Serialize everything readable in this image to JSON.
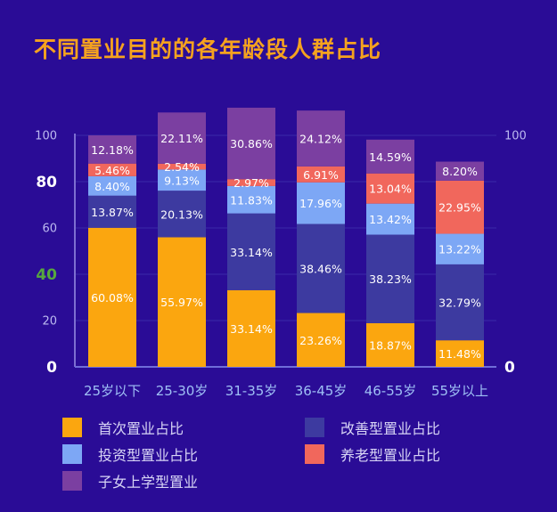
{
  "title": "不同置业目的的各年龄段人群占比",
  "colors": {
    "background": "#2a0c96",
    "title": "#f5a21f",
    "first_home": "#fba60f",
    "improve": "#3d3aa0",
    "invest": "#7da7f5",
    "retire": "#f1675c",
    "education": "#7b3fa1"
  },
  "chart_data": {
    "type": "bar",
    "stacked": true,
    "categories": [
      "25岁以下",
      "25-30岁",
      "31-35岁",
      "36-45岁",
      "46-55岁",
      "55岁以上"
    ],
    "series": [
      {
        "name": "首次置业占比",
        "values": [
          60.08,
          55.97,
          33.14,
          23.26,
          18.87,
          11.48
        ],
        "labels": [
          "60.08%",
          "55.97%",
          "33.14%",
          "23.26%",
          "18.87%",
          "11.48%"
        ],
        "color_key": "first_home"
      },
      {
        "name": "改善型置业占比",
        "values": [
          13.87,
          20.13,
          33.14,
          38.46,
          38.23,
          32.79
        ],
        "labels": [
          "13.87%",
          "20.13%",
          "33.14%",
          "38.46%",
          "38.23%",
          "32.79%"
        ],
        "color_key": "improve"
      },
      {
        "name": "投资型置业占比",
        "values": [
          8.4,
          9.13,
          11.83,
          17.96,
          13.42,
          13.22
        ],
        "labels": [
          "8.40%",
          "9.13%",
          "11.83%",
          "17.96%",
          "13.42%",
          "13.22%"
        ],
        "color_key": "invest"
      },
      {
        "name": "养老型置业占比",
        "values": [
          5.46,
          2.54,
          2.97,
          6.91,
          13.04,
          22.95
        ],
        "labels": [
          "5.46%",
          "2.54%",
          "2.97%",
          "6.91%",
          "13.04%",
          "22.95%"
        ],
        "color_key": "retire"
      },
      {
        "name": "子女上学型置业",
        "values": [
          12.18,
          22.11,
          30.86,
          24.12,
          14.59,
          8.2
        ],
        "labels": [
          "12.18%",
          "22.11%",
          "30.86%",
          "24.12%",
          "14.59%",
          "8.20%"
        ],
        "color_key": "education"
      }
    ],
    "ylim": [
      0,
      100
    ],
    "left_ticks": [
      {
        "label": "100",
        "value": 100,
        "style": "small"
      },
      {
        "label": "80",
        "value": 80,
        "style": "big"
      },
      {
        "label": "60",
        "value": 60,
        "style": "small"
      },
      {
        "label": "40",
        "value": 40,
        "style": "green"
      },
      {
        "label": "20",
        "value": 20,
        "style": "small"
      },
      {
        "label": "0",
        "value": 0,
        "style": "big"
      }
    ],
    "right_ticks": [
      {
        "label": "100",
        "value": 100,
        "style": "small"
      },
      {
        "label": "0",
        "value": 0,
        "style": "big"
      }
    ],
    "grid": true
  },
  "legend": [
    {
      "label": "首次置业占比",
      "color_key": "first_home"
    },
    {
      "label": "改善型置业占比",
      "color_key": "improve"
    },
    {
      "label": "投资型置业占比",
      "color_key": "invest"
    },
    {
      "label": "养老型置业占比",
      "color_key": "retire"
    },
    {
      "label": "子女上学型置业",
      "color_key": "education"
    }
  ]
}
